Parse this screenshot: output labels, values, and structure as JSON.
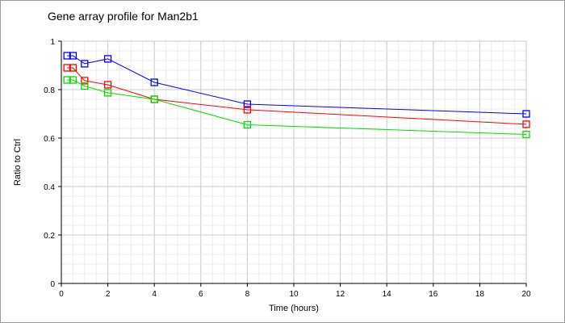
{
  "chart_data": {
    "type": "line",
    "title": "Gene array profile for Man2b1",
    "xlabel": "Time (hours)",
    "ylabel": "Ratio to Ctrl",
    "xlim": [
      0,
      20
    ],
    "ylim": [
      0,
      1
    ],
    "xticks": [
      "0",
      "2",
      "4",
      "6",
      "8",
      "10",
      "12",
      "14",
      "16",
      "18",
      "20"
    ],
    "yticks": [
      "0",
      "0.2",
      "0.4",
      "0.6",
      "0.8",
      "1"
    ],
    "grid": true,
    "x": [
      0.25,
      0.5,
      1,
      2,
      4,
      8,
      20
    ],
    "series": [
      {
        "name": "blue",
        "color": "#0000ff",
        "values": [
          0.94,
          0.94,
          0.907,
          0.927,
          0.83,
          0.74,
          0.7
        ]
      },
      {
        "name": "red",
        "color": "#ff0000",
        "values": [
          0.89,
          0.89,
          0.837,
          0.82,
          0.76,
          0.717,
          0.657
        ]
      },
      {
        "name": "green",
        "color": "#00dd00",
        "values": [
          0.84,
          0.84,
          0.815,
          0.787,
          0.76,
          0.655,
          0.615
        ]
      }
    ]
  }
}
